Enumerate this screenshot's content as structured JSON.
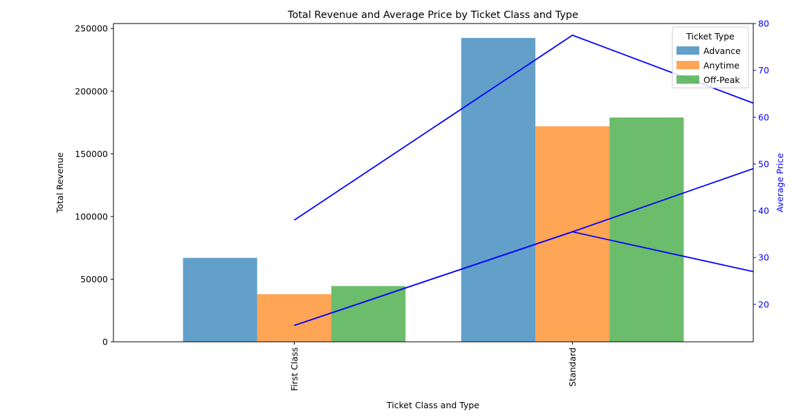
{
  "chart_data": {
    "type": "bar",
    "title": "Total Revenue and Average Price by Ticket Class and Type",
    "xlabel": "Ticket Class and Type",
    "ylabel": "Total Revenue",
    "y2label": "Average Price",
    "categories": [
      "First Class",
      "Standard"
    ],
    "ylim": [
      0,
      254000
    ],
    "y2lim": [
      12,
      80
    ],
    "yticks": [
      0,
      50000,
      100000,
      150000,
      200000,
      250000
    ],
    "y2ticks": [
      20,
      30,
      40,
      50,
      60,
      70,
      80
    ],
    "legend_title": "Ticket Type",
    "legend_position": "top-right",
    "grid": false,
    "series": [
      {
        "name": "Advance",
        "color": "#1f77b4",
        "values": [
          67000,
          242500
        ]
      },
      {
        "name": "Anytime",
        "color": "#ff7f0e",
        "values": [
          38000,
          172000
        ]
      },
      {
        "name": "Off-Peak",
        "color": "#2ca02c",
        "values": [
          44500,
          179000
        ]
      }
    ],
    "line_series": [
      {
        "color": "#0000ff",
        "x": [
          0,
          1,
          1.65
        ],
        "values": [
          38,
          77.5,
          63
        ]
      },
      {
        "color": "#0000ff",
        "x": [
          0,
          1,
          1.65
        ],
        "values": [
          15.5,
          35.5,
          27
        ]
      },
      {
        "color": "#0000ff",
        "x": [
          0,
          1,
          1.65
        ],
        "values": [
          15.5,
          35.5,
          49
        ]
      }
    ]
  }
}
